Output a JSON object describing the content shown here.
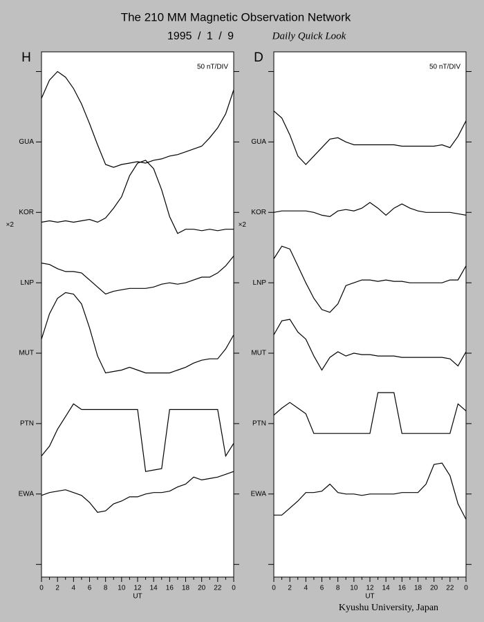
{
  "header": {
    "title": "The 210 MM Magnetic Observation Network",
    "date": "1995 / 1 / 9",
    "subtitle": "Daily Quick Look"
  },
  "footer": "Kyushu University, Japan",
  "chart_data": [
    {
      "type": "line",
      "title": "H",
      "scale_label": "50 nT/DIV",
      "x_label": "UT",
      "color": "#000000",
      "x": [
        0,
        1,
        2,
        3,
        4,
        5,
        6,
        7,
        8,
        9,
        10,
        11,
        12,
        13,
        14,
        15,
        16,
        17,
        18,
        19,
        20,
        21,
        22,
        23,
        24
      ],
      "xlim": [
        0,
        24
      ],
      "xticks": [
        0,
        2,
        4,
        6,
        8,
        10,
        12,
        14,
        16,
        18,
        20,
        22,
        {
          "value": 24,
          "label": "0"
        }
      ],
      "xticks_minor": [
        1,
        3,
        5,
        7,
        9,
        11,
        13,
        15,
        17,
        19,
        21,
        23
      ],
      "ylim": [
        -9,
        364
      ],
      "yticks": [
        {
          "value": 0,
          "label": null
        },
        {
          "value": 50,
          "label": "EWA"
        },
        {
          "value": 100,
          "label": "PTN"
        },
        {
          "value": 150,
          "label": "MUT"
        },
        {
          "value": 200,
          "label": "LNP"
        },
        {
          "value": 250,
          "label": "KOR"
        },
        {
          "value": 300,
          "label": "GUA"
        },
        {
          "value": 350,
          "label": null
        }
      ],
      "series": [
        {
          "values": [
            331,
            344,
            350,
            346,
            338,
            327,
            313,
            298,
            284,
            282,
            284,
            285,
            286,
            285,
            287,
            288,
            290,
            291,
            293,
            295,
            297,
            303,
            310,
            320,
            337
          ]
        },
        {
          "note": "×2",
          "values": [
            243,
            244,
            243,
            244,
            243,
            244,
            245,
            243,
            246,
            253,
            261,
            276,
            285,
            287,
            281,
            266,
            247,
            235,
            238,
            238,
            237,
            238,
            237,
            238,
            238
          ]
        },
        {
          "values": [
            214,
            213,
            210,
            208,
            208,
            207,
            202,
            197,
            192,
            194,
            195,
            196,
            196,
            196,
            197,
            199,
            200,
            199,
            200,
            202,
            204,
            204,
            207,
            212,
            219
          ]
        },
        {
          "values": [
            160,
            178,
            189,
            193,
            192,
            185,
            168,
            148,
            136,
            137,
            138,
            140,
            138,
            136,
            136,
            136,
            136,
            138,
            140,
            143,
            145,
            146,
            146,
            153,
            163
          ]
        },
        {
          "values": [
            77,
            84,
            96,
            105,
            114,
            110,
            110,
            110,
            110,
            110,
            110,
            110,
            110,
            66,
            67,
            68,
            110,
            110,
            110,
            110,
            110,
            110,
            110,
            77,
            86
          ]
        },
        {
          "values": [
            49,
            51,
            52,
            53,
            51,
            49,
            44,
            37,
            38,
            43,
            45,
            48,
            48,
            50,
            51,
            51,
            52,
            55,
            57,
            62,
            60,
            61,
            62,
            64,
            66
          ]
        }
      ]
    },
    {
      "type": "line",
      "title": "D",
      "scale_label": "50 nT/DIV",
      "x_label": "UT",
      "color": "#000000",
      "x": [
        0,
        1,
        2,
        3,
        4,
        5,
        6,
        7,
        8,
        9,
        10,
        11,
        12,
        13,
        14,
        15,
        16,
        17,
        18,
        19,
        20,
        21,
        22,
        23,
        24
      ],
      "xlim": [
        0,
        24
      ],
      "xticks": [
        0,
        2,
        4,
        6,
        8,
        10,
        12,
        14,
        16,
        18,
        20,
        22,
        {
          "value": 24,
          "label": "0"
        }
      ],
      "xticks_minor": [
        1,
        3,
        5,
        7,
        9,
        11,
        13,
        15,
        17,
        19,
        21,
        23
      ],
      "ylim": [
        -9,
        364
      ],
      "yticks": [
        {
          "value": 0,
          "label": null
        },
        {
          "value": 50,
          "label": "EWA"
        },
        {
          "value": 100,
          "label": "PTN"
        },
        {
          "value": 150,
          "label": "MUT"
        },
        {
          "value": 200,
          "label": "LNP"
        },
        {
          "value": 250,
          "label": "KOR"
        },
        {
          "value": 300,
          "label": "GUA"
        },
        {
          "value": 350,
          "label": null
        }
      ],
      "series": [
        {
          "values": [
            322,
            317,
            305,
            290,
            284,
            290,
            296,
            302,
            303,
            300,
            298,
            298,
            298,
            298,
            298,
            298,
            297,
            297,
            297,
            297,
            297,
            298,
            296,
            304,
            315
          ]
        },
        {
          "note": "×2",
          "values": [
            250,
            251,
            251,
            251,
            251,
            250,
            248,
            247,
            251,
            252,
            251,
            253,
            257,
            253,
            248,
            253,
            256,
            253,
            251,
            250,
            250,
            250,
            250,
            249,
            248
          ]
        },
        {
          "values": [
            217,
            226,
            224,
            212,
            200,
            189,
            181,
            179,
            185,
            198,
            200,
            202,
            202,
            201,
            202,
            201,
            201,
            200,
            200,
            200,
            200,
            200,
            202,
            202,
            212
          ]
        },
        {
          "values": [
            163,
            173,
            174,
            165,
            160,
            148,
            138,
            147,
            151,
            148,
            150,
            149,
            149,
            148,
            148,
            148,
            147,
            147,
            147,
            147,
            147,
            147,
            146,
            141,
            151
          ]
        },
        {
          "values": [
            106,
            111,
            115,
            111,
            107,
            93,
            93,
            93,
            93,
            93,
            93,
            93,
            93,
            122,
            122,
            122,
            93,
            93,
            93,
            93,
            93,
            93,
            93,
            114,
            109
          ]
        },
        {
          "values": [
            35,
            35,
            40,
            45,
            51,
            51,
            52,
            57,
            51,
            50,
            50,
            49,
            50,
            50,
            50,
            50,
            51,
            51,
            51,
            57,
            71,
            72,
            63,
            43,
            32
          ]
        }
      ]
    }
  ]
}
